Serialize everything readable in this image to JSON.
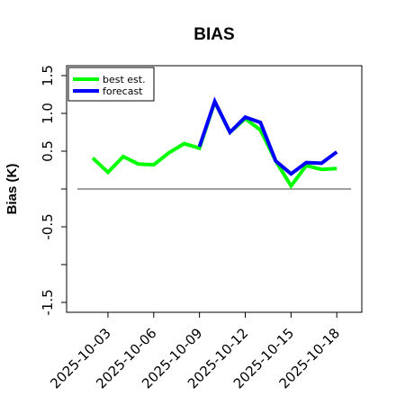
{
  "chart_data": {
    "type": "line",
    "title": "BIAS",
    "ylabel": "Bias (K)",
    "xlabel": "",
    "ylim": [
      -1.6,
      1.65
    ],
    "yticks": [
      -1.5,
      -1.0,
      -0.5,
      0.0,
      0.5,
      1.0,
      1.5
    ],
    "ytick_labels": [
      "-1.5",
      "",
      "-0.5",
      "",
      "0.5",
      "1.0",
      "1.5"
    ],
    "x": [
      "2025-10-02",
      "2025-10-03",
      "2025-10-04",
      "2025-10-05",
      "2025-10-06",
      "2025-10-07",
      "2025-10-08",
      "2025-10-09",
      "2025-10-10",
      "2025-10-11",
      "2025-10-12",
      "2025-10-13",
      "2025-10-14",
      "2025-10-15",
      "2025-10-16",
      "2025-10-17",
      "2025-10-18"
    ],
    "xticks": [
      "2025-10-03",
      "2025-10-06",
      "2025-10-09",
      "2025-10-12",
      "2025-10-15",
      "2025-10-18"
    ],
    "highlight_xtick": "2025-10-09",
    "highlight_color": "#228b22",
    "zero_line": 0.0,
    "series": [
      {
        "name": "best est.",
        "color": "#00ff00",
        "values": [
          0.41,
          0.22,
          0.43,
          0.33,
          0.32,
          0.48,
          0.6,
          0.54,
          1.15,
          0.75,
          0.93,
          0.78,
          0.37,
          0.04,
          0.31,
          0.26,
          0.27
        ]
      },
      {
        "name": "forecast",
        "color": "#0000ff",
        "values": [
          null,
          null,
          null,
          null,
          null,
          null,
          null,
          0.56,
          1.16,
          0.75,
          0.95,
          0.88,
          0.37,
          0.2,
          0.35,
          0.34,
          0.49
        ]
      }
    ],
    "legend_position": "top-left",
    "grid": false
  }
}
